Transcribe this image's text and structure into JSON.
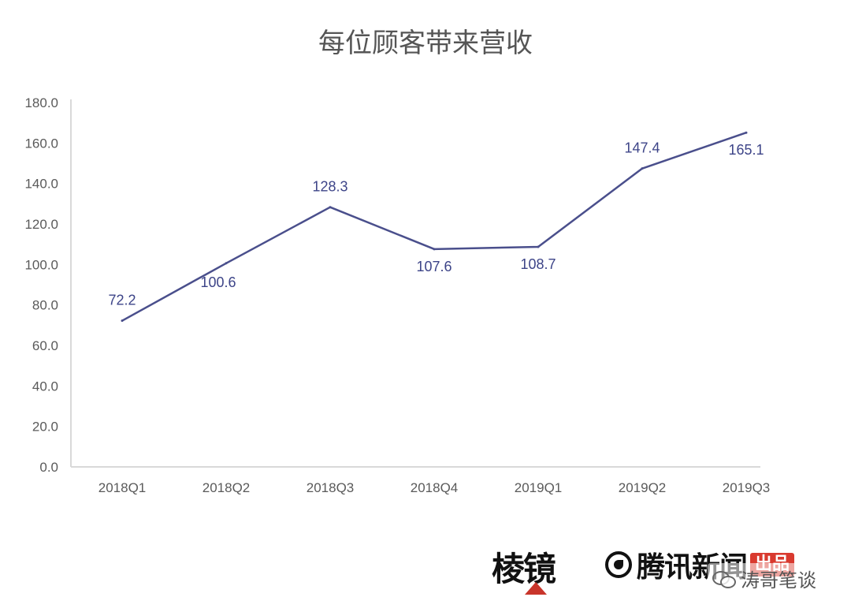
{
  "chart_data": {
    "type": "line",
    "title": "每位顾客带来营收",
    "categories": [
      "2018Q1",
      "2018Q2",
      "2018Q3",
      "2018Q4",
      "2019Q1",
      "2019Q2",
      "2019Q3"
    ],
    "series": [
      {
        "values": [
          72.2,
          100.6,
          128.3,
          107.6,
          108.7,
          147.4,
          165.1
        ],
        "data_labels": [
          "72.2",
          "100.6",
          "128.3",
          "107.6",
          "108.7",
          "147.4",
          "165.1"
        ],
        "color": "#4a4f8c"
      }
    ],
    "ylim": [
      0,
      180
    ],
    "yticks": [
      0,
      20,
      40,
      60,
      80,
      100,
      120,
      140,
      160,
      180
    ],
    "ytick_labels": [
      "0.0",
      "20.0",
      "40.0",
      "60.0",
      "80.0",
      "100.0",
      "120.0",
      "140.0",
      "160.0",
      "180.0"
    ],
    "grid": false,
    "legend": "none",
    "axis_color": "#d9d9d9"
  },
  "footer": {
    "brand_lengjing": "棱镜",
    "brand_tencent": "腾讯新闻",
    "brand_tencent_badge": "出品",
    "watermark": "涛哥笔谈",
    "brand_tencent_icon": "tencent-news-icon",
    "watermark_icon": "wechat-icon"
  }
}
